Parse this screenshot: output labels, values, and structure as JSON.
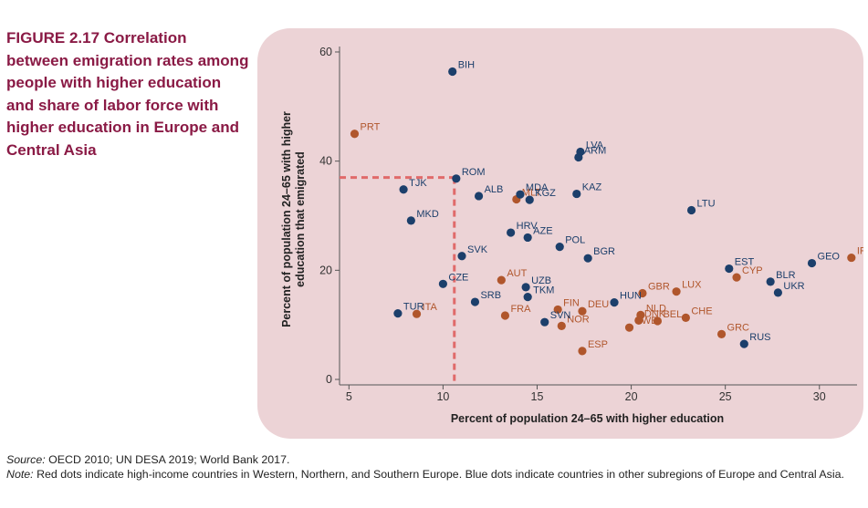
{
  "figure": {
    "number": "FIGURE 2.17",
    "title": "Correlation between emigration rates among people with higher education and share of labor force with higher education in Europe and Central Asia"
  },
  "footer": {
    "source_label": "Source:",
    "source_text": "OECD 2010; UN DESA 2019; World Bank 2017.",
    "note_label": "Note:",
    "note_text": "Red dots indicate high-income countries in Western, Northern, and Southern Europe. Blue dots indicate countries in other subregions of Europe and Central Asia."
  },
  "colors": {
    "panel": "#ecd3d6",
    "western": "#b0562c",
    "other": "#1c3f6b",
    "reference_line": "#e06a6a",
    "title": "#8a1a45"
  },
  "chart_data": {
    "type": "scatter",
    "xlabel": "Percent of population 24–65 with higher education",
    "ylabel_lines": [
      "Percent of population 24–65 with higher",
      "education that emigrated"
    ],
    "xlim": [
      4.5,
      32
    ],
    "ylim": [
      -1,
      61
    ],
    "xticks": [
      5,
      10,
      15,
      20,
      25,
      30
    ],
    "yticks": [
      0,
      20,
      40,
      60
    ],
    "grid": false,
    "reference_lines": {
      "x": 10.6,
      "y": 37
    },
    "series": [
      {
        "group": "western",
        "points": [
          {
            "label": "PRT",
            "x": 5.3,
            "y": 45
          },
          {
            "label": "ITA",
            "x": 8.6,
            "y": 12
          },
          {
            "label": "MLT",
            "x": 13.9,
            "y": 33
          },
          {
            "label": "AUT",
            "x": 13.1,
            "y": 18.2
          },
          {
            "label": "FRA",
            "x": 13.3,
            "y": 11.7
          },
          {
            "label": "FIN",
            "x": 16.1,
            "y": 12.8
          },
          {
            "label": "DEU",
            "x": 17.4,
            "y": 12.5
          },
          {
            "label": "NOR",
            "x": 16.3,
            "y": 9.8
          },
          {
            "label": "ESP",
            "x": 17.4,
            "y": 5.2
          },
          {
            "label": "GBR",
            "x": 20.6,
            "y": 15.8
          },
          {
            "label": "LUX",
            "x": 22.4,
            "y": 16.1
          },
          {
            "label": "NLD",
            "x": 20.5,
            "y": 11.8
          },
          {
            "label": "DNK",
            "x": 20.4,
            "y": 10.8
          },
          {
            "label": "BEL",
            "x": 21.4,
            "y": 10.7
          },
          {
            "label": "SWE",
            "x": 19.9,
            "y": 9.5
          },
          {
            "label": "CHE",
            "x": 22.9,
            "y": 11.3
          },
          {
            "label": "GRC",
            "x": 24.8,
            "y": 8.3
          },
          {
            "label": "CYP",
            "x": 25.6,
            "y": 18.7
          },
          {
            "label": "IRL",
            "x": 31.7,
            "y": 22.3
          }
        ]
      },
      {
        "group": "other",
        "points": [
          {
            "label": "BIH",
            "x": 10.5,
            "y": 56.4
          },
          {
            "label": "TJK",
            "x": 7.9,
            "y": 34.8
          },
          {
            "label": "ROM",
            "x": 10.7,
            "y": 36.8
          },
          {
            "label": "MKD",
            "x": 8.3,
            "y": 29.1
          },
          {
            "label": "ALB",
            "x": 11.9,
            "y": 33.6
          },
          {
            "label": "MDA",
            "x": 14.1,
            "y": 33.9
          },
          {
            "label": "KGZ",
            "x": 14.6,
            "y": 32.9
          },
          {
            "label": "KAZ",
            "x": 17.1,
            "y": 34.0
          },
          {
            "label": "LVA",
            "x": 17.3,
            "y": 41.7
          },
          {
            "label": "ARM",
            "x": 17.2,
            "y": 40.7
          },
          {
            "label": "LTU",
            "x": 23.2,
            "y": 31.0
          },
          {
            "label": "HRV",
            "x": 13.6,
            "y": 26.9
          },
          {
            "label": "AZE",
            "x": 14.5,
            "y": 26.0
          },
          {
            "label": "POL",
            "x": 16.2,
            "y": 24.3
          },
          {
            "label": "BGR",
            "x": 17.7,
            "y": 22.2
          },
          {
            "label": "SVK",
            "x": 11.0,
            "y": 22.6
          },
          {
            "label": "CZE",
            "x": 10.0,
            "y": 17.5
          },
          {
            "label": "UZB",
            "x": 14.4,
            "y": 16.9
          },
          {
            "label": "TKM",
            "x": 14.5,
            "y": 15.1
          },
          {
            "label": "SRB",
            "x": 11.7,
            "y": 14.2
          },
          {
            "label": "TUR",
            "x": 7.6,
            "y": 12.1
          },
          {
            "label": "HUN",
            "x": 19.1,
            "y": 14.1
          },
          {
            "label": "SVN",
            "x": 15.4,
            "y": 10.5
          },
          {
            "label": "EST",
            "x": 25.2,
            "y": 20.3
          },
          {
            "label": "BLR",
            "x": 27.4,
            "y": 17.9
          },
          {
            "label": "UKR",
            "x": 27.8,
            "y": 15.9
          },
          {
            "label": "GEO",
            "x": 29.6,
            "y": 21.3
          },
          {
            "label": "RUS",
            "x": 26.0,
            "y": 6.5
          }
        ]
      }
    ]
  }
}
